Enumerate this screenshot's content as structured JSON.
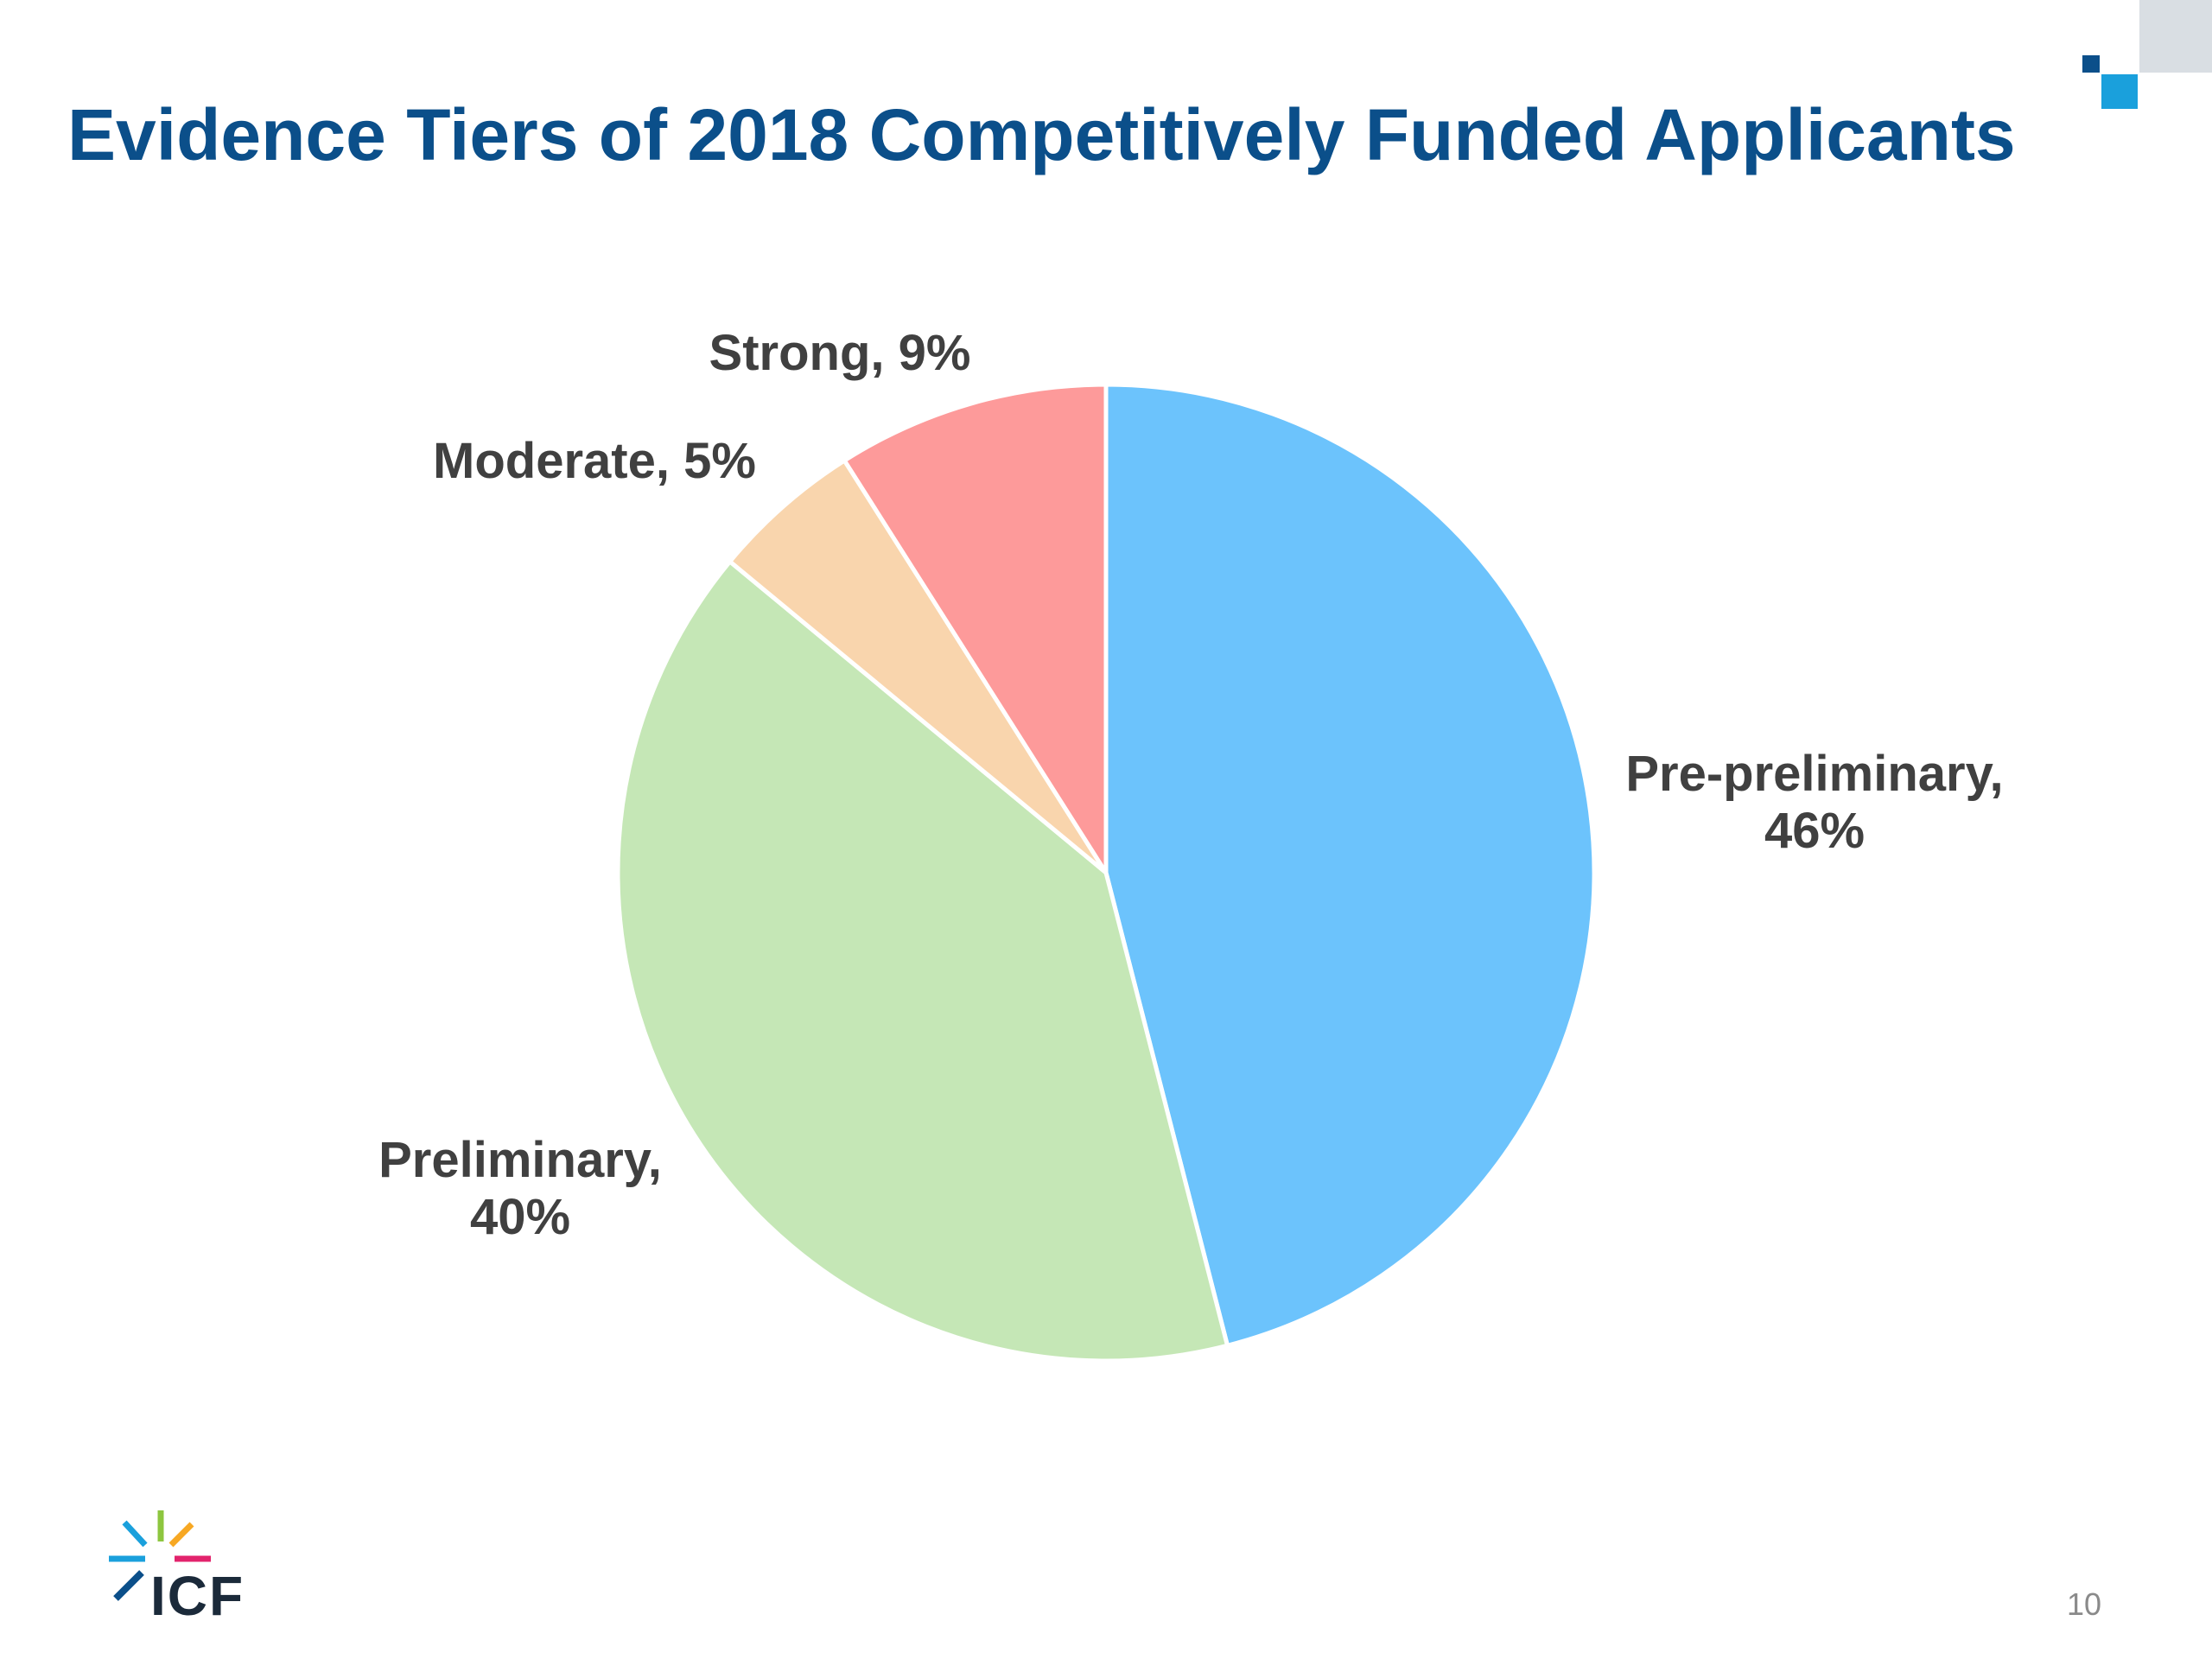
{
  "slide": {
    "title": "Evidence Tiers of 2018 Competitively Funded Applicants",
    "page_number": "10",
    "logo_text": "ICF",
    "accent_colors": {
      "title": "#0b4f8a",
      "deco_dark": "#0b4f8a",
      "deco_light": "#1aa0dc",
      "deco_gray": "#d9dee3"
    }
  },
  "chart_data": {
    "type": "pie",
    "title": "Evidence Tiers of 2018 Competitively Funded Applicants",
    "start": "12 o'clock, clockwise",
    "slices": [
      {
        "name": "Pre-preliminary",
        "value": 46,
        "label_lines": [
          "Pre-preliminary,",
          "46%"
        ],
        "color": "#6cc3fc"
      },
      {
        "name": "Preliminary",
        "value": 40,
        "label_lines": [
          "Preliminary,",
          "40%"
        ],
        "color": "#c5e7b6"
      },
      {
        "name": "Moderate",
        "value": 5,
        "label_lines": [
          "Moderate, 5%"
        ],
        "color": "#f9d5ad"
      },
      {
        "name": "Strong",
        "value": 9,
        "label_lines": [
          "Strong, 9%"
        ],
        "color": "#fd9a9a"
      }
    ]
  }
}
